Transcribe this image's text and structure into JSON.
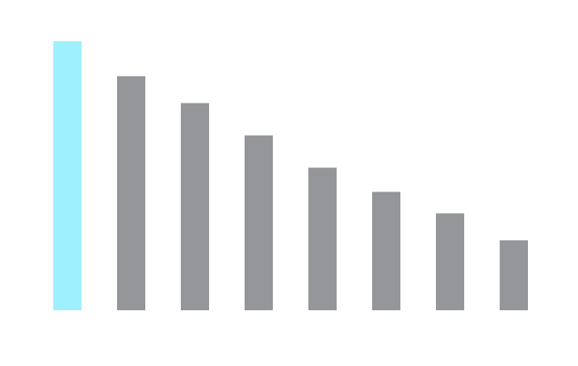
{
  "chart_data": {
    "type": "bar",
    "categories": [
      null,
      null,
      null,
      null,
      null,
      null,
      null,
      null
    ],
    "values": [
      100,
      87,
      77,
      65,
      53,
      44,
      36,
      26
    ],
    "colors": [
      "#9ef0fe",
      "#959699",
      "#959699",
      "#959699",
      "#959699",
      "#959699",
      "#959699",
      "#959699"
    ],
    "ylim": [
      0,
      100
    ]
  }
}
